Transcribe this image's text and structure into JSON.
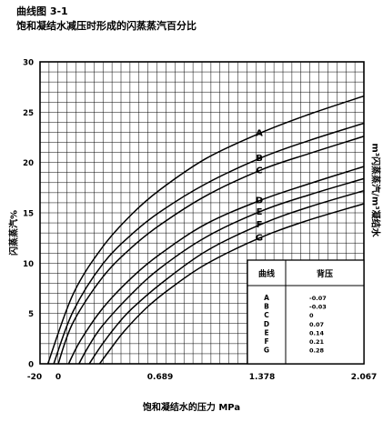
{
  "chart_data": {
    "type": "line",
    "title": "曲线图 3-1",
    "subtitle": "饱和凝结水减压时形成的闪蒸蒸汽百分比",
    "xlabel": "饱和凝结水的压力 MPa",
    "ylabel": "闪蒸蒸汽%",
    "y2label": "m³闪蒸蒸汽/m³凝结水",
    "xlim": [
      -20,
      2.067
    ],
    "ylim": [
      0,
      30
    ],
    "x_tick_labels": [
      "-20",
      "0",
      "0.689",
      "1.378",
      "2.067"
    ],
    "y_ticks": [
      0,
      5,
      10,
      15,
      20,
      25,
      30
    ],
    "grid": true,
    "series": [
      {
        "name": "A",
        "back_pressure": "-0.07",
        "x": [
          -0.07,
          0.1,
          0.3,
          0.5,
          0.689,
          1.0,
          1.378,
          1.7,
          2.067
        ],
        "y": [
          0,
          6.9,
          11.6,
          14.9,
          17.3,
          20.4,
          23.0,
          24.8,
          26.6
        ]
      },
      {
        "name": "B",
        "back_pressure": "-0.03",
        "x": [
          -0.03,
          0.1,
          0.3,
          0.5,
          0.689,
          1.0,
          1.378,
          1.7,
          2.067
        ],
        "y": [
          0,
          5.2,
          9.9,
          12.9,
          15.1,
          17.9,
          20.5,
          22.2,
          23.9
        ]
      },
      {
        "name": "C",
        "back_pressure": "0",
        "x": [
          0,
          0.1,
          0.3,
          0.5,
          0.689,
          1.0,
          1.378,
          1.7,
          2.067
        ],
        "y": [
          0,
          4.1,
          8.6,
          11.6,
          13.8,
          16.7,
          19.3,
          20.9,
          22.6
        ]
      },
      {
        "name": "D",
        "back_pressure": "0.07",
        "x": [
          0.07,
          0.15,
          0.3,
          0.5,
          0.689,
          1.0,
          1.378,
          1.7,
          2.067
        ],
        "y": [
          0,
          2.3,
          5.5,
          8.6,
          10.9,
          13.9,
          16.3,
          17.9,
          19.6
        ]
      },
      {
        "name": "E",
        "back_pressure": "0.14",
        "x": [
          0.14,
          0.2,
          0.3,
          0.5,
          0.689,
          1.0,
          1.378,
          1.7,
          2.067
        ],
        "y": [
          0,
          1.6,
          3.8,
          7.0,
          9.5,
          12.6,
          15.2,
          16.8,
          18.4
        ]
      },
      {
        "name": "F",
        "back_pressure": "0.21",
        "x": [
          0.21,
          0.3,
          0.4,
          0.5,
          0.689,
          1.0,
          1.378,
          1.7,
          2.067
        ],
        "y": [
          0,
          2.0,
          3.9,
          5.5,
          7.9,
          11.2,
          13.9,
          15.6,
          17.2
        ]
      },
      {
        "name": "G",
        "back_pressure": "0.28",
        "x": [
          0.28,
          0.35,
          0.45,
          0.6,
          0.75,
          1.0,
          1.378,
          1.7,
          2.067
        ],
        "y": [
          0,
          1.4,
          3.3,
          5.6,
          7.4,
          9.9,
          12.6,
          14.3,
          15.9
        ]
      }
    ],
    "legend_table": {
      "header_curve": "曲线",
      "header_pressure": "背压",
      "placement": "bottom-right"
    }
  }
}
